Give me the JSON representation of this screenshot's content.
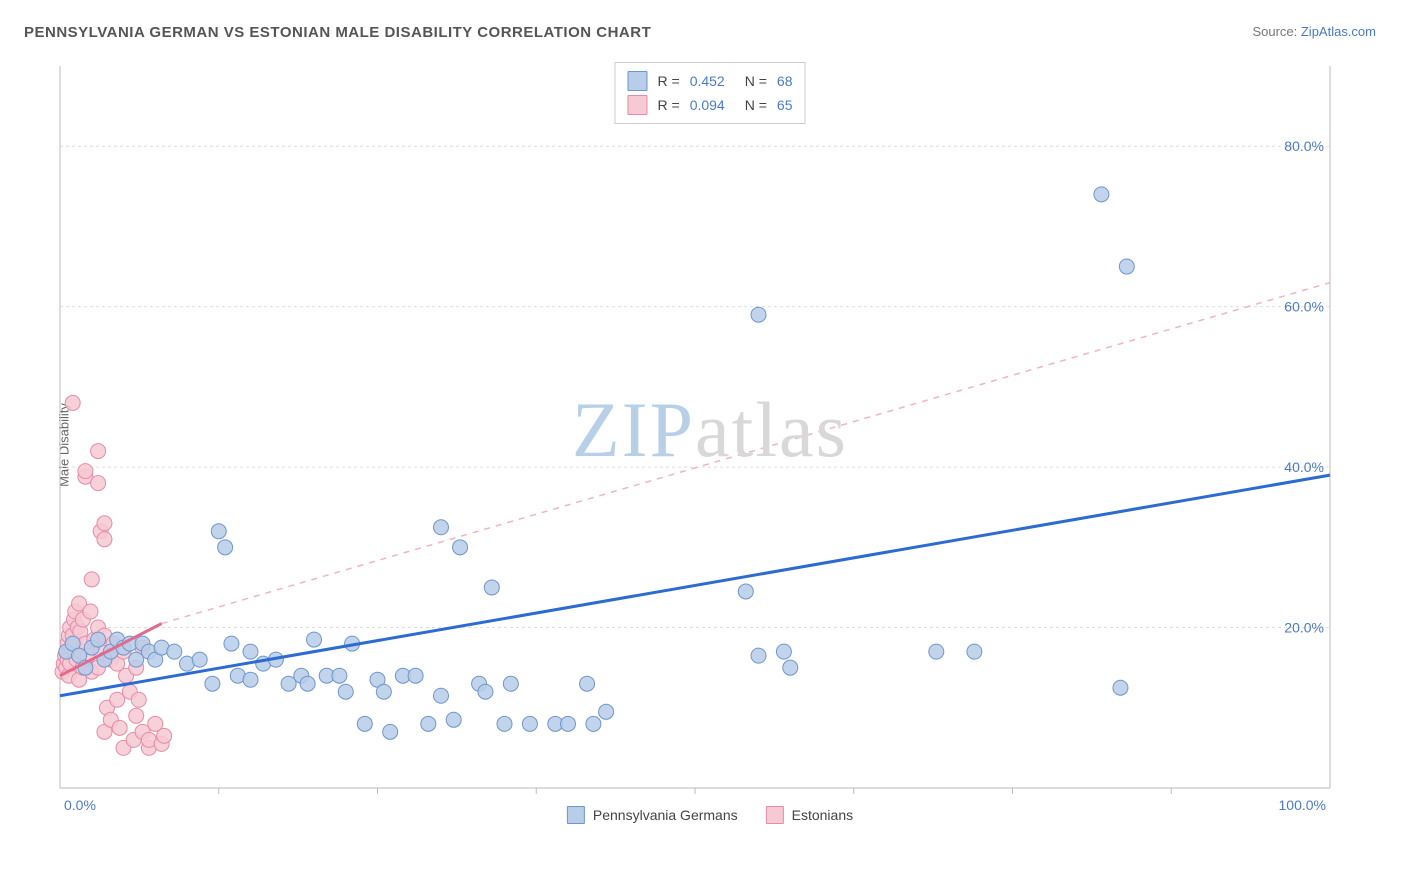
{
  "title": "PENNSYLVANIA GERMAN VS ESTONIAN MALE DISABILITY CORRELATION CHART",
  "source_prefix": "Source: ",
  "source_name": "ZipAtlas.com",
  "watermark_zip": "ZIP",
  "watermark_atlas": "atlas",
  "chart": {
    "type": "scatter",
    "ylabel": "Male Disability",
    "xlim": [
      0,
      100
    ],
    "ylim": [
      0,
      90
    ],
    "xticks": [
      0,
      100
    ],
    "xtick_labels": [
      "0.0%",
      "100.0%"
    ],
    "yticks": [
      20,
      40,
      60,
      80
    ],
    "ytick_labels": [
      "20.0%",
      "40.0%",
      "60.0%",
      "80.0%"
    ],
    "x_minor_ticks": [
      12.5,
      25,
      37.5,
      50,
      62.5,
      75,
      87.5
    ],
    "grid_color": "#dddddd",
    "axis_color": "#bbbbbb",
    "tick_label_color": "#4a7ac7",
    "background_color": "#ffffff",
    "marker_radius": 7.5,
    "marker_stroke_width": 1,
    "series": [
      {
        "name": "Pennsylvania Germans",
        "fill": "#b7cde9",
        "stroke": "#6e95cc",
        "swatch_fill": "#b7cde9",
        "swatch_stroke": "#6e95cc",
        "R": "0.452",
        "N": "68",
        "trend": {
          "x1": 0,
          "y1": 11.5,
          "x2": 100,
          "y2": 39,
          "color": "#2e6bd0",
          "width": 3,
          "dash": ""
        },
        "points": [
          [
            0.5,
            17
          ],
          [
            1,
            18
          ],
          [
            1.5,
            16.5
          ],
          [
            2,
            15
          ],
          [
            2.5,
            17.5
          ],
          [
            3,
            18.5
          ],
          [
            3.5,
            16
          ],
          [
            4,
            17
          ],
          [
            4.5,
            18.5
          ],
          [
            5,
            17.5
          ],
          [
            5.5,
            18
          ],
          [
            6,
            16
          ],
          [
            6.5,
            18
          ],
          [
            7,
            17
          ],
          [
            7.5,
            16
          ],
          [
            8,
            17.5
          ],
          [
            9,
            17
          ],
          [
            10,
            15.5
          ],
          [
            11,
            16
          ],
          [
            12,
            13
          ],
          [
            12.5,
            32
          ],
          [
            13,
            30
          ],
          [
            13.5,
            18
          ],
          [
            14,
            14
          ],
          [
            15,
            17
          ],
          [
            15,
            13.5
          ],
          [
            16,
            15.5
          ],
          [
            17,
            16
          ],
          [
            18,
            13
          ],
          [
            19,
            14
          ],
          [
            19.5,
            13
          ],
          [
            20,
            18.5
          ],
          [
            21,
            14
          ],
          [
            22,
            14
          ],
          [
            22.5,
            12
          ],
          [
            23,
            18
          ],
          [
            24,
            8
          ],
          [
            25,
            13.5
          ],
          [
            25.5,
            12
          ],
          [
            26,
            7
          ],
          [
            27,
            14
          ],
          [
            28,
            14
          ],
          [
            29,
            8
          ],
          [
            30,
            11.5
          ],
          [
            30,
            32.5
          ],
          [
            31,
            8.5
          ],
          [
            31.5,
            30
          ],
          [
            33,
            13
          ],
          [
            33.5,
            12
          ],
          [
            34,
            25
          ],
          [
            35,
            8
          ],
          [
            35.5,
            13
          ],
          [
            37,
            8
          ],
          [
            39,
            8
          ],
          [
            40,
            8
          ],
          [
            41.5,
            13
          ],
          [
            42,
            8
          ],
          [
            43,
            9.5
          ],
          [
            54,
            24.5
          ],
          [
            55,
            16.5
          ],
          [
            55,
            59
          ],
          [
            57,
            17
          ],
          [
            57.5,
            15
          ],
          [
            69,
            17
          ],
          [
            72,
            17
          ],
          [
            82,
            74
          ],
          [
            83.5,
            12.5
          ],
          [
            84,
            65
          ]
        ]
      },
      {
        "name": "Estonians",
        "fill": "#f6c9d4",
        "stroke": "#e88aa5",
        "swatch_fill": "#f6c9d4",
        "swatch_stroke": "#e88aa5",
        "R": "0.094",
        "N": "65",
        "trend_solid": {
          "x1": 0,
          "y1": 14,
          "x2": 8,
          "y2": 20.5,
          "color": "#e36a8c",
          "width": 3
        },
        "trend_dash": {
          "x1": 8,
          "y1": 20.5,
          "x2": 100,
          "y2": 63,
          "color": "#f0b4c2",
          "width": 1.5,
          "dash": "6 6"
        },
        "points": [
          [
            0.2,
            14.5
          ],
          [
            0.3,
            15.5
          ],
          [
            0.4,
            16.5
          ],
          [
            0.5,
            15
          ],
          [
            0.5,
            17
          ],
          [
            0.6,
            16
          ],
          [
            0.6,
            18
          ],
          [
            0.7,
            14
          ],
          [
            0.7,
            19
          ],
          [
            0.8,
            20
          ],
          [
            0.8,
            15.5
          ],
          [
            0.9,
            17.5
          ],
          [
            1,
            19
          ],
          [
            1,
            48
          ],
          [
            1.1,
            21
          ],
          [
            1.2,
            18
          ],
          [
            1.2,
            22
          ],
          [
            1.3,
            16
          ],
          [
            1.4,
            20
          ],
          [
            1.5,
            13.5
          ],
          [
            1.5,
            23
          ],
          [
            1.6,
            19.5
          ],
          [
            1.7,
            17
          ],
          [
            1.8,
            15
          ],
          [
            1.8,
            21
          ],
          [
            2,
            18
          ],
          [
            2,
            38.8
          ],
          [
            2,
            39.5
          ],
          [
            2.2,
            16.5
          ],
          [
            2.4,
            22
          ],
          [
            2.5,
            14.5
          ],
          [
            2.5,
            26
          ],
          [
            2.7,
            18.5
          ],
          [
            3,
            38
          ],
          [
            3,
            15
          ],
          [
            3,
            20
          ],
          [
            3,
            42
          ],
          [
            3.2,
            17
          ],
          [
            3.2,
            32
          ],
          [
            3.5,
            19
          ],
          [
            3.5,
            31
          ],
          [
            3.5,
            7
          ],
          [
            3.5,
            33
          ],
          [
            3.7,
            10
          ],
          [
            4,
            16
          ],
          [
            4,
            8.5
          ],
          [
            4.2,
            18
          ],
          [
            4.5,
            11
          ],
          [
            4.5,
            15.5
          ],
          [
            4.7,
            7.5
          ],
          [
            5,
            17
          ],
          [
            5,
            5
          ],
          [
            5.2,
            14
          ],
          [
            5.5,
            12
          ],
          [
            5.8,
            6
          ],
          [
            6,
            15
          ],
          [
            6,
            9
          ],
          [
            6.2,
            11
          ],
          [
            6.5,
            7
          ],
          [
            6.5,
            17.5
          ],
          [
            7,
            5
          ],
          [
            7,
            6
          ],
          [
            7.5,
            8
          ],
          [
            8,
            5.5
          ],
          [
            8.2,
            6.5
          ]
        ]
      }
    ],
    "bottom_legend": [
      {
        "label": "Pennsylvania Germans",
        "fill": "#b7cde9",
        "stroke": "#6e95cc"
      },
      {
        "label": "Estonians",
        "fill": "#f6c9d4",
        "stroke": "#e88aa5"
      }
    ],
    "corr_legend_labels": {
      "R": "R = ",
      "N": "N = "
    }
  }
}
